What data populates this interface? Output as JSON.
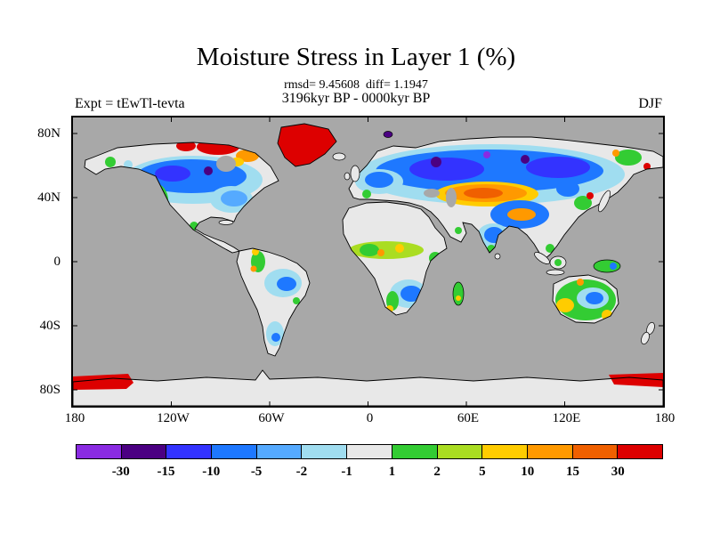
{
  "header": {
    "title": "Moisture Stress in Layer 1 (%)",
    "stats_line": "rmsd= 9.45608  diff= 1.1947",
    "period_line": "3196kyr BP - 0000kyr BP",
    "experiment_label": "Expt = tEwTl-tevta",
    "season_label": "DJF"
  },
  "chart_data": {
    "type": "heatmap",
    "title": "Moisture Stress in Layer 1 (%)",
    "subtitle": "3196kyr BP - 0000kyr BP",
    "rmsd": 9.45608,
    "diff": 1.1947,
    "experiment": "tEwTl-tevta",
    "season": "DJF",
    "units": "%",
    "projection": "equirectangular world map, land-only filled contours",
    "map": {
      "ocean_color": "#A8A8A8",
      "land_neutral_color": "#E8E8E8",
      "coastline_color": "#000000"
    },
    "colorbar": {
      "orientation": "horizontal",
      "levels": [
        -30,
        -15,
        -10,
        -5,
        -2,
        -1,
        1,
        2,
        5,
        10,
        15,
        30
      ],
      "tick_labels": [
        "-30",
        "-15",
        "-10",
        "-5",
        "-2",
        "-1",
        "1",
        "2",
        "5",
        "10",
        "15",
        "30"
      ],
      "colors": [
        "#8A2BE2",
        "#4B0082",
        "#3333FF",
        "#1E78FF",
        "#55AAFF",
        "#A0DDF0",
        "#E8E8E8",
        "#33CC33",
        "#AADD22",
        "#FFCC00",
        "#FF9900",
        "#F06000",
        "#DD0000"
      ]
    },
    "x_axis": {
      "tick_labels": [
        "180",
        "120W",
        "60W",
        "0",
        "60E",
        "120E",
        "180"
      ]
    },
    "y_axis": {
      "tick_labels": [
        "80N",
        "40N",
        "0",
        "40S",
        "80S"
      ]
    },
    "regional_pattern_summary": [
      {
        "region": "Greenland",
        "value_range": "> 30"
      },
      {
        "region": "Northern Canada / Arctic islands",
        "value_range": "> 30 with 10 to 30 patches"
      },
      {
        "region": "Mid-latitude Canada",
        "value_range": "-10 to -2"
      },
      {
        "region": "Western North America",
        "value_range": "2 to 15 mixed patches"
      },
      {
        "region": "Eastern United States",
        "value_range": "-5 to -1"
      },
      {
        "region": "Northern Eurasia / Siberia",
        "value_range": "-15 to -2 with small < -30 spots"
      },
      {
        "region": "Central Russia / Kazakhstan",
        "value_range": "10 to 30"
      },
      {
        "region": "Tibetan Plateau",
        "value_range": "10 to 15 core surrounded by -10 to -5"
      },
      {
        "region": "India",
        "value_range": "-10 to -2 with green 1 to 5 in south"
      },
      {
        "region": "Sahel belt",
        "value_range": "1 to 10"
      },
      {
        "region": "Southern Africa",
        "value_range": "-10 to -1 with 1 to 5 west coast"
      },
      {
        "region": "Amazon basin",
        "value_range": "-5 to -1"
      },
      {
        "region": "Andes / west South America",
        "value_range": "1 to 10"
      },
      {
        "region": "Australia",
        "value_range": "edges 1 to 10, interior east -5 to -1"
      },
      {
        "region": "Antarctic coast near 180W and 180E",
        "value_range": "> 30"
      }
    ]
  }
}
